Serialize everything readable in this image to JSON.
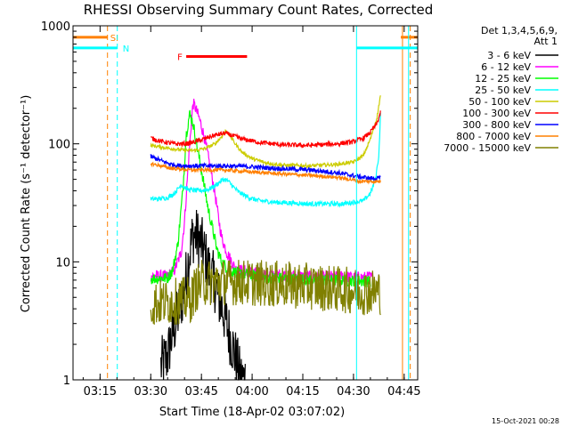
{
  "chart_data": {
    "type": "line",
    "title": "RHESSI Observing Summary Count Rates, Corrected",
    "xlabel": "Start Time (18-Apr-02 03:07:02)",
    "ylabel": "Corrected Count Rate (s⁻¹ detector⁻¹)",
    "y_scale": "log",
    "x_unit": "minutes after 03:07:02",
    "xlim": [
      0,
      102
    ],
    "ylim": [
      1,
      1000
    ],
    "x_ticks": [
      {
        "t": 8,
        "label": "03:15"
      },
      {
        "t": 23,
        "label": "03:30"
      },
      {
        "t": 38,
        "label": "03:45"
      },
      {
        "t": 53,
        "label": "04:00"
      },
      {
        "t": 68,
        "label": "04:15"
      },
      {
        "t": 83,
        "label": "04:30"
      },
      {
        "t": 98,
        "label": "04:45"
      }
    ],
    "y_ticks": [
      {
        "v": 1,
        "label": "1"
      },
      {
        "v": 10,
        "label": "10"
      },
      {
        "v": 100,
        "label": "100"
      },
      {
        "v": 1000,
        "label": "1000"
      }
    ],
    "legend_header": [
      "Det 1,3,4,5,6,9,",
      "Att 1"
    ],
    "legend_position": "right",
    "series": [
      {
        "name": "3 - 6 keV",
        "color": "#000000",
        "noise": 0.25,
        "clip_below": 1,
        "points": [
          [
            26,
            1.3
          ],
          [
            28,
            1.6
          ],
          [
            29,
            2.2
          ],
          [
            31,
            3.5
          ],
          [
            33,
            6
          ],
          [
            34.5,
            12
          ],
          [
            35.5,
            17
          ],
          [
            37,
            16
          ],
          [
            38.5,
            13
          ],
          [
            40,
            9
          ],
          [
            42,
            6.5
          ],
          [
            43,
            5
          ],
          [
            44.5,
            3.8
          ],
          [
            46,
            2.6
          ],
          [
            47.5,
            1.8
          ],
          [
            48.5,
            1.4
          ],
          [
            49.5,
            1.05
          ],
          [
            51,
            1.0
          ]
        ]
      },
      {
        "name": "6 - 12 keV",
        "color": "#ff00ff",
        "noise": 0.05,
        "points": [
          [
            23,
            7.6
          ],
          [
            28,
            7.6
          ],
          [
            30,
            8.5
          ],
          [
            32,
            12
          ],
          [
            33,
            22
          ],
          [
            34,
            60
          ],
          [
            35,
            150
          ],
          [
            35.5,
            220
          ],
          [
            36,
            210
          ],
          [
            37.5,
            160
          ],
          [
            39,
            110
          ],
          [
            40.5,
            65
          ],
          [
            42,
            38
          ],
          [
            43,
            24
          ],
          [
            44,
            16
          ],
          [
            45.5,
            12
          ],
          [
            47,
            10
          ],
          [
            48,
            8.7
          ],
          [
            55,
            8
          ],
          [
            70,
            7.5
          ],
          [
            80,
            7.5
          ],
          [
            85,
            7.4
          ],
          [
            89,
            7.4
          ]
        ]
      },
      {
        "name": "12 - 25 keV",
        "color": "#00ff00",
        "noise": 0.05,
        "points": [
          [
            23,
            7.2
          ],
          [
            28,
            7.3
          ],
          [
            29.5,
            8.5
          ],
          [
            31,
            14
          ],
          [
            32.5,
            40
          ],
          [
            33.5,
            120
          ],
          [
            34.5,
            180
          ],
          [
            35.5,
            150
          ],
          [
            37,
            85
          ],
          [
            38.5,
            50
          ],
          [
            40,
            28
          ],
          [
            41.5,
            18
          ],
          [
            42.5,
            13
          ],
          [
            44,
            10
          ],
          [
            45.5,
            9
          ],
          [
            47,
            8.3
          ],
          [
            55,
            7.4
          ],
          [
            65,
            7.2
          ],
          [
            75,
            7
          ],
          [
            85,
            6.9
          ],
          [
            88,
            6.8
          ]
        ]
      },
      {
        "name": "25 - 50 keV",
        "color": "#00ffff",
        "noise": 0.02,
        "points": [
          [
            23,
            34
          ],
          [
            25,
            34
          ],
          [
            28,
            35
          ],
          [
            30,
            38
          ],
          [
            32,
            45
          ],
          [
            34,
            41
          ],
          [
            37,
            40
          ],
          [
            40,
            41
          ],
          [
            42,
            44
          ],
          [
            44,
            49
          ],
          [
            45,
            50
          ],
          [
            46,
            48
          ],
          [
            47.5,
            43
          ],
          [
            49,
            39
          ],
          [
            52,
            35
          ],
          [
            55,
            33
          ],
          [
            60,
            32
          ],
          [
            70,
            31
          ],
          [
            80,
            31
          ],
          [
            86,
            33
          ],
          [
            88,
            38
          ],
          [
            89.5,
            50
          ],
          [
            90.5,
            80
          ],
          [
            91,
            180
          ]
        ]
      },
      {
        "name": "50 - 100 keV",
        "color": "#cccc00",
        "noise": 0.015,
        "points": [
          [
            23,
            97
          ],
          [
            28,
            92
          ],
          [
            33,
            88
          ],
          [
            36,
            88
          ],
          [
            39,
            91
          ],
          [
            42,
            100
          ],
          [
            44,
            115
          ],
          [
            45,
            128
          ],
          [
            46,
            123
          ],
          [
            48,
            100
          ],
          [
            50,
            85
          ],
          [
            53,
            75
          ],
          [
            57,
            69
          ],
          [
            62,
            66
          ],
          [
            70,
            65
          ],
          [
            78,
            67
          ],
          [
            83,
            70
          ],
          [
            86,
            80
          ],
          [
            88,
            110
          ],
          [
            90,
            170
          ],
          [
            91,
            260
          ]
        ]
      },
      {
        "name": "100 - 300 keV",
        "color": "#ff0000",
        "noise": 0.02,
        "points": [
          [
            23,
            112
          ],
          [
            26,
            105
          ],
          [
            30,
            100
          ],
          [
            33,
            100
          ],
          [
            35,
            102
          ],
          [
            38,
            108
          ],
          [
            41,
            116
          ],
          [
            43,
            120
          ],
          [
            45,
            123
          ],
          [
            47,
            118
          ],
          [
            50,
            110
          ],
          [
            55,
            103
          ],
          [
            62,
            98
          ],
          [
            70,
            97
          ],
          [
            78,
            100
          ],
          [
            83,
            104
          ],
          [
            86,
            112
          ],
          [
            88,
            125
          ],
          [
            90,
            150
          ],
          [
            91,
            185
          ]
        ]
      },
      {
        "name": "300 - 800 keV",
        "color": "#0000ff",
        "noise": 0.02,
        "points": [
          [
            23,
            78
          ],
          [
            26,
            72
          ],
          [
            29,
            67
          ],
          [
            32,
            65
          ],
          [
            35,
            65
          ],
          [
            40,
            65
          ],
          [
            45,
            65
          ],
          [
            52,
            64
          ],
          [
            60,
            62
          ],
          [
            70,
            60
          ],
          [
            78,
            57
          ],
          [
            84,
            53
          ],
          [
            88,
            51
          ],
          [
            91,
            51
          ]
        ]
      },
      {
        "name": "800 - 7000 keV",
        "color": "#ff8000",
        "noise": 0.015,
        "points": [
          [
            23,
            68
          ],
          [
            26,
            65
          ],
          [
            29,
            62
          ],
          [
            32,
            61
          ],
          [
            35,
            60
          ],
          [
            40,
            60
          ],
          [
            45,
            60
          ],
          [
            52,
            58
          ],
          [
            60,
            56
          ],
          [
            70,
            54
          ],
          [
            78,
            52
          ],
          [
            82,
            50
          ],
          [
            85,
            48
          ],
          [
            88,
            48
          ],
          [
            91,
            48
          ]
        ]
      },
      {
        "name": "7000 - 15000 keV",
        "color": "#808000",
        "noise": 0.2,
        "points": [
          [
            23,
            4.4
          ],
          [
            35,
            4.8
          ],
          [
            36,
            5.8
          ],
          [
            38,
            6.6
          ],
          [
            45,
            6.8
          ],
          [
            55,
            6.6
          ],
          [
            70,
            6.2
          ],
          [
            80,
            5.8
          ],
          [
            85,
            5.6
          ],
          [
            91,
            5.6
          ]
        ]
      }
    ],
    "attenuator_state": {
      "label": "SI",
      "color": "#ff8000",
      "start_level": 800,
      "intervals": [
        [
          0,
          10.2
        ],
        [
          97,
          102
        ]
      ],
      "boundaries": [
        10.2,
        97.5,
        99.8
      ]
    },
    "night_state": {
      "label": "N",
      "color": "#00ffff",
      "level": 650,
      "intervals": [
        [
          0,
          13.1
        ],
        [
          83.9,
          102
        ]
      ],
      "boundaries": [
        13.1,
        83.9,
        99.3
      ]
    },
    "flare_flag": {
      "label": "F",
      "color": "#ff0000",
      "level": 550,
      "interval": [
        33.5,
        51.5
      ]
    },
    "timestamp": "15-Oct-2021 00:28"
  }
}
